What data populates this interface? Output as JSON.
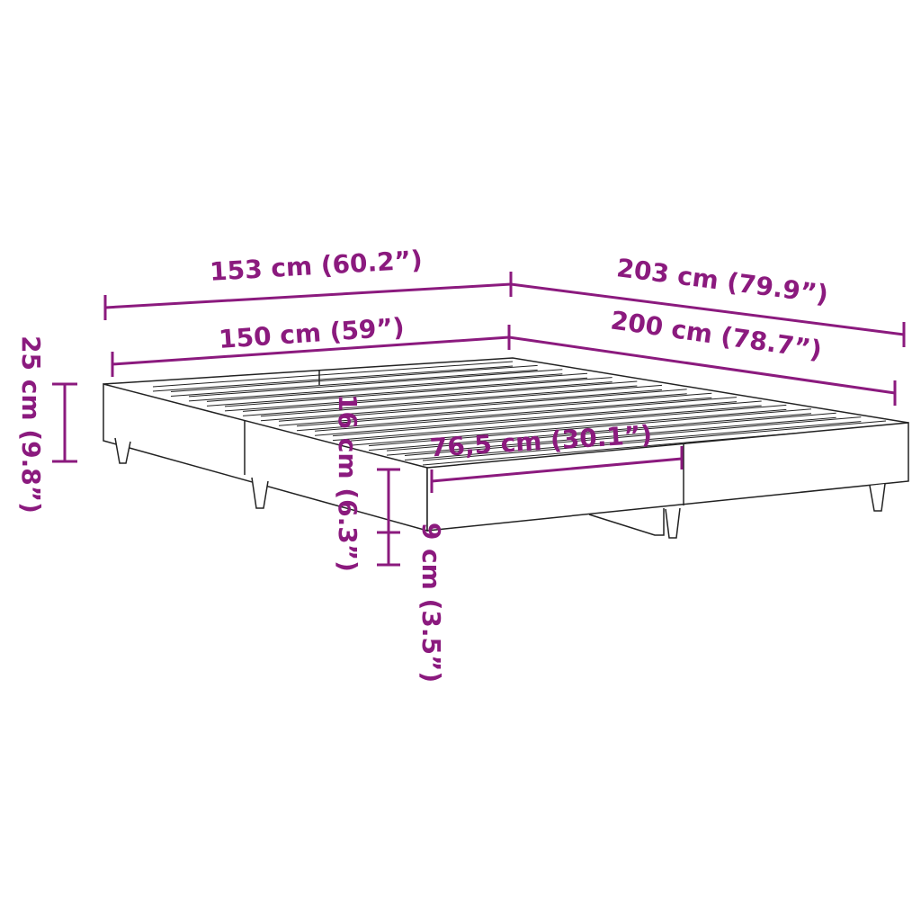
{
  "colors": {
    "dimension": "#8B1A7E",
    "outline": "#222222",
    "background": "#ffffff"
  },
  "dimensions": {
    "outer_width": "153 cm (60.2”)",
    "outer_length": "203 cm (79.9”)",
    "inner_width": "150 cm (59”)",
    "inner_length": "200 cm (78.7”)",
    "total_height": "25 cm (9.8”)",
    "frame_height": "16 cm (6.3”)",
    "clearance": "9 cm (3.5”)",
    "half_width": "76,5 cm (30.1”)"
  }
}
